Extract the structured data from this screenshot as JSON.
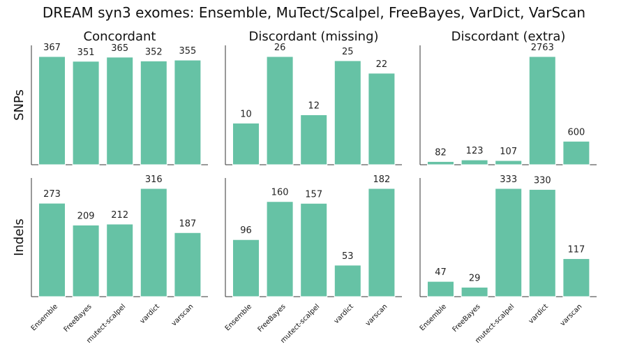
{
  "chart_data": {
    "type": "bar",
    "title": "DREAM syn3 exomes: Ensemble, MuTect/Scalpel, FreeBayes, VarDict, VarScan",
    "column_titles": [
      "Concordant",
      "Discordant (missing)",
      "Discordant (extra)"
    ],
    "row_titles": [
      "SNPs",
      "Indels"
    ],
    "categories": [
      "Ensemble",
      "FreeBayes",
      "mutect-scalpel",
      "vardict",
      "varscan"
    ],
    "bar_color": "#66c2a5",
    "panels": [
      {
        "row": "SNPs",
        "column": "Concordant",
        "values": [
          367,
          351,
          365,
          352,
          355
        ]
      },
      {
        "row": "SNPs",
        "column": "Discordant (missing)",
        "values": [
          10,
          26,
          12,
          25,
          22
        ]
      },
      {
        "row": "SNPs",
        "column": "Discordant (extra)",
        "values": [
          82,
          123,
          107,
          2763,
          600
        ]
      },
      {
        "row": "Indels",
        "column": "Concordant",
        "values": [
          273,
          209,
          212,
          316,
          187
        ]
      },
      {
        "row": "Indels",
        "column": "Discordant (missing)",
        "values": [
          96,
          160,
          157,
          53,
          182
        ]
      },
      {
        "row": "Indels",
        "column": "Discordant (extra)",
        "values": [
          47,
          29,
          333,
          330,
          117
        ]
      }
    ],
    "grid": false,
    "legend": "none"
  }
}
